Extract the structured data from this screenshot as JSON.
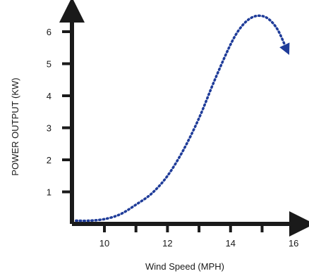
{
  "chart_data": {
    "type": "line",
    "title": "",
    "xlabel": "Wind Speed (MPH)",
    "ylabel": "POWER OUTPUT (KW)",
    "xlim": [
      9,
      16.5
    ],
    "ylim": [
      0,
      6.5
    ],
    "x_ticks": [
      10,
      12,
      14,
      16
    ],
    "x_minor_ticks": [
      11,
      13,
      15
    ],
    "y_ticks": [
      1,
      2,
      3,
      4,
      5,
      6
    ],
    "grid": false,
    "series": [
      {
        "line_style": "dotted",
        "color": "#1f3c99",
        "end_marker": "arrow",
        "x": [
          9.1,
          9.5,
          10.0,
          10.5,
          11.0,
          11.5,
          12.0,
          12.5,
          13.0,
          13.5,
          14.0,
          14.3,
          14.6,
          14.9,
          15.2,
          15.5,
          15.8
        ],
        "y": [
          0.1,
          0.1,
          0.15,
          0.3,
          0.6,
          0.95,
          1.5,
          2.3,
          3.3,
          4.5,
          5.6,
          6.1,
          6.4,
          6.5,
          6.4,
          6.05,
          5.4
        ]
      }
    ]
  }
}
